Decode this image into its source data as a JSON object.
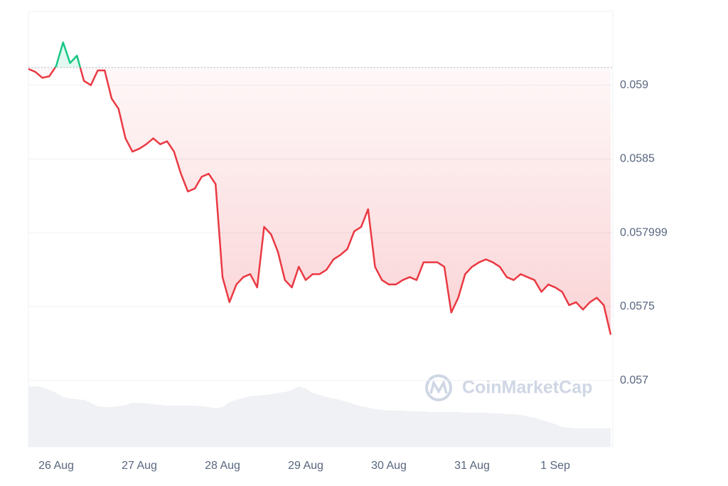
{
  "chart_data": {
    "type": "line",
    "watermark": "CoinMarketCap",
    "categories": [
      null,
      null,
      null,
      null,
      "26 Aug",
      null,
      null,
      null,
      null,
      null,
      null,
      null,
      null,
      null,
      null,
      null,
      "27 Aug",
      null,
      null,
      null,
      null,
      null,
      null,
      null,
      null,
      null,
      null,
      null,
      "28 Aug",
      null,
      null,
      null,
      null,
      null,
      null,
      null,
      null,
      null,
      null,
      null,
      "29 Aug",
      null,
      null,
      null,
      null,
      null,
      null,
      null,
      null,
      null,
      null,
      null,
      "30 Aug",
      null,
      null,
      null,
      null,
      null,
      null,
      null,
      null,
      null,
      null,
      null,
      "31 Aug",
      null,
      null,
      null,
      null,
      null,
      null,
      null,
      null,
      null,
      null,
      null,
      "1 Sep",
      null,
      null,
      null,
      null,
      null,
      null,
      null,
      null
    ],
    "series": [
      {
        "values": [
          0.05911,
          0.05909,
          0.05905,
          0.05906,
          0.05913,
          0.05929,
          0.05915,
          0.0592,
          0.05903,
          0.059,
          0.0591,
          0.0591,
          0.05891,
          0.05884,
          0.05864,
          0.05855,
          0.05857,
          0.0586,
          0.05864,
          0.0586,
          0.05862,
          0.05855,
          0.0584,
          0.05828,
          0.0583,
          0.05838,
          0.0584,
          0.05833,
          0.0577,
          0.05753,
          0.05765,
          0.0577,
          0.05772,
          0.05763,
          0.05804,
          0.05799,
          0.05787,
          0.05768,
          0.05763,
          0.05777,
          0.05768,
          0.05772,
          0.05772,
          0.05775,
          0.05782,
          0.05785,
          0.05789,
          0.05801,
          0.05804,
          0.05816,
          0.05777,
          0.05768,
          0.05765,
          0.05765,
          0.05768,
          0.0577,
          0.05768,
          0.0578,
          0.0578,
          0.0578,
          0.05777,
          0.05746,
          0.05756,
          0.05772,
          0.05777,
          0.0578,
          0.05782,
          0.0578,
          0.05777,
          0.0577,
          0.05768,
          0.05772,
          0.0577,
          0.05768,
          0.0576,
          0.05765,
          0.05763,
          0.0576,
          0.05751,
          0.05753,
          0.05748,
          0.05753,
          0.05756,
          0.05751,
          0.05731
        ]
      }
    ],
    "volume": [
      85,
      85,
      84,
      80,
      76,
      70,
      68,
      67,
      66,
      62,
      57,
      56,
      56,
      57,
      59,
      62,
      62,
      61,
      60,
      59,
      58,
      58,
      58,
      58,
      58,
      57,
      56,
      54,
      56,
      63,
      66,
      69,
      71,
      72,
      73,
      74,
      76,
      77,
      80,
      85,
      82,
      76,
      73,
      70,
      68,
      66,
      63,
      60,
      57,
      55,
      53,
      52,
      51,
      51,
      51,
      50,
      50,
      50,
      49,
      49,
      49,
      49,
      49,
      48,
      48,
      48,
      48,
      47,
      47,
      46,
      46,
      45,
      43,
      41,
      38,
      35,
      32,
      28,
      27,
      26,
      26,
      26,
      26,
      26,
      26
    ],
    "baseline": 0.05912,
    "up_color": "#16c784",
    "down_color": "#ea3943",
    "volume_color": "#eff1f4",
    "ylim": [
      0.05655,
      0.0595
    ],
    "yticks": [
      0.057,
      0.0575,
      {
        "value": 0.058,
        "label": "0.057999"
      },
      0.0585,
      0.059
    ],
    "grid": true
  }
}
